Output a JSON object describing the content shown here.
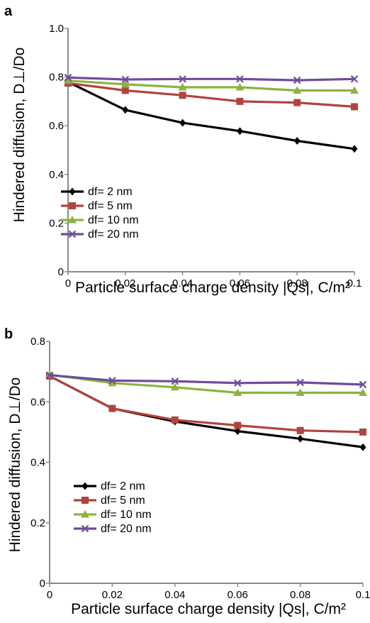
{
  "chart_data": [
    {
      "panel": "a",
      "type": "line",
      "ylabel": "Hindered diffusion, D⊥/Do",
      "xlabel": "Particle surface charge density |Qs|, C/m²",
      "xlim": [
        0,
        0.1
      ],
      "ylim": [
        0,
        1.0
      ],
      "xticks": [
        "0",
        "0.02",
        "0.04",
        "0.06",
        "0.08",
        "0.1"
      ],
      "yticks": [
        "0",
        "0.2",
        "0.4",
        "0.6",
        "0.8",
        "1.0"
      ],
      "x": [
        0,
        0.02,
        0.04,
        0.06,
        0.08,
        0.1
      ],
      "legend_position": "lower-left",
      "series": [
        {
          "name": "df= 2 nm",
          "color": "#000000",
          "marker": "diamond",
          "values": [
            0.78,
            0.665,
            0.612,
            0.578,
            0.538,
            0.505
          ]
        },
        {
          "name": "df= 5 nm",
          "color": "#B0443F",
          "marker": "square",
          "values": [
            0.775,
            0.745,
            0.725,
            0.7,
            0.695,
            0.678
          ]
        },
        {
          "name": "df= 10 nm",
          "color": "#8DB33F",
          "marker": "triangle",
          "values": [
            0.785,
            0.77,
            0.758,
            0.758,
            0.745,
            0.745
          ]
        },
        {
          "name": "df= 20 nm",
          "color": "#6E4C9A",
          "marker": "x",
          "values": [
            0.798,
            0.79,
            0.792,
            0.792,
            0.787,
            0.792
          ]
        }
      ]
    },
    {
      "panel": "b",
      "type": "line",
      "ylabel": "Hindered diffusion, D⊥/Do",
      "xlabel": "Particle surface charge density |Qs|, C/m²",
      "xlim": [
        0,
        0.1
      ],
      "ylim": [
        0,
        0.8
      ],
      "xticks": [
        "0",
        "0.02",
        "0.04",
        "0.06",
        "0.08",
        "0.1"
      ],
      "yticks": [
        "0",
        "0.2",
        "0.4",
        "0.6",
        "0.8"
      ],
      "x": [
        0,
        0.02,
        0.04,
        0.06,
        0.08,
        0.1
      ],
      "legend_position": "lower-left",
      "series": [
        {
          "name": "df= 2 nm",
          "color": "#000000",
          "marker": "diamond",
          "values": [
            0.685,
            0.578,
            0.535,
            0.503,
            0.478,
            0.45
          ]
        },
        {
          "name": "df= 5 nm",
          "color": "#B0443F",
          "marker": "square",
          "values": [
            0.685,
            0.578,
            0.54,
            0.522,
            0.505,
            0.5
          ]
        },
        {
          "name": "df= 10 nm",
          "color": "#8DB33F",
          "marker": "triangle",
          "values": [
            0.69,
            0.662,
            0.648,
            0.63,
            0.63,
            0.63
          ]
        },
        {
          "name": "df= 20 nm",
          "color": "#6E4C9A",
          "marker": "x",
          "values": [
            0.688,
            0.67,
            0.668,
            0.662,
            0.664,
            0.657
          ]
        }
      ]
    }
  ]
}
